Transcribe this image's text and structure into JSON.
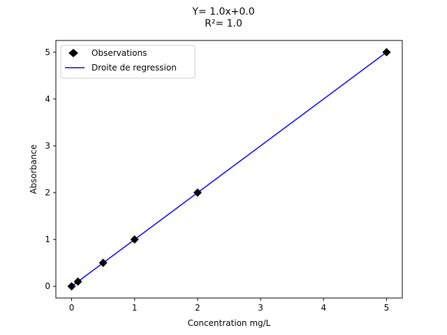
{
  "chart_data": {
    "type": "scatter",
    "title": "Y= 1.0x+0.0",
    "subtitle": "R²= 1.0",
    "xlabel": "Concentration mg/L",
    "ylabel": "Absorbance",
    "xlim": [
      -0.25,
      5.25
    ],
    "ylim": [
      -0.25,
      5.25
    ],
    "x_ticks": [
      0,
      1,
      2,
      3,
      4,
      5
    ],
    "y_ticks": [
      0,
      1,
      2,
      3,
      4,
      5
    ],
    "grid": false,
    "legend_position": "top-left",
    "series": [
      {
        "name": "Observations",
        "kind": "markers",
        "marker": "diamond",
        "color": "#000000",
        "x": [
          0,
          0.1,
          0.5,
          1,
          2,
          5
        ],
        "y": [
          0,
          0.1,
          0.5,
          1,
          2,
          5
        ]
      },
      {
        "name": "Droite de regression",
        "kind": "line",
        "color": "#0000ff",
        "x": [
          0,
          5
        ],
        "y": [
          0,
          5
        ]
      }
    ]
  }
}
